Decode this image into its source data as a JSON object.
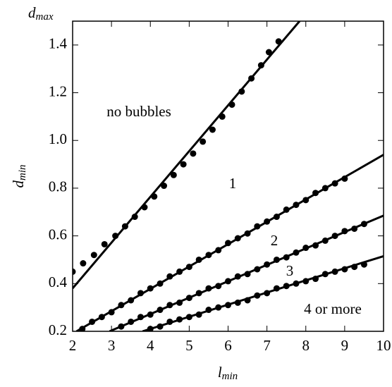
{
  "chart_data": {
    "type": "scatter",
    "xlabel": [
      "l",
      "min"
    ],
    "ylabel": [
      "d",
      "min"
    ],
    "top_label": [
      "d",
      "max"
    ],
    "xlim": [
      2,
      10
    ],
    "ylim": [
      0.2,
      1.5
    ],
    "xticks": [
      2,
      3,
      4,
      5,
      6,
      7,
      8,
      9,
      10
    ],
    "yticks": [
      0.2,
      0.4,
      0.6,
      0.8,
      {
        "value": 1,
        "label": "1.0"
      },
      1.2,
      1.4
    ],
    "color": "#000000",
    "annotations": [
      "no bubbles",
      "1",
      "2",
      "3",
      "4 or more"
    ],
    "lines": [
      {
        "x": [
          2,
          7.84
        ],
        "y": [
          0.38,
          1.5
        ]
      },
      {
        "x": [
          2.1,
          10
        ],
        "y": [
          0.2,
          0.94
        ]
      },
      {
        "x": [
          2.95,
          10
        ],
        "y": [
          0.2,
          0.685
        ]
      },
      {
        "x": [
          3.8,
          10
        ],
        "y": [
          0.2,
          0.515
        ]
      }
    ],
    "series": [
      {
        "x": [
          2,
          2.27,
          2.55,
          2.82,
          3.1,
          3.35,
          3.6,
          3.85,
          4.1,
          4.35,
          4.6,
          4.85,
          5.1,
          5.35,
          5.6,
          5.85,
          6.1,
          6.35,
          6.6,
          6.85,
          7.05,
          7.3
        ],
        "values": [
          0.45,
          0.485,
          0.52,
          0.565,
          0.6,
          0.64,
          0.68,
          0.72,
          0.765,
          0.81,
          0.855,
          0.9,
          0.945,
          0.995,
          1.045,
          1.1,
          1.15,
          1.205,
          1.26,
          1.315,
          1.37,
          1.415
        ]
      },
      {
        "x": [
          2.25,
          2.5,
          2.75,
          3,
          3.25,
          3.5,
          3.75,
          4,
          4.25,
          4.5,
          4.75,
          5,
          5.25,
          5.5,
          5.75,
          6,
          6.25,
          6.5,
          6.75,
          7,
          7.25,
          7.5,
          7.75,
          8,
          8.25,
          8.5,
          8.75,
          9
        ],
        "values": [
          0.21,
          0.24,
          0.26,
          0.28,
          0.31,
          0.33,
          0.36,
          0.38,
          0.4,
          0.43,
          0.45,
          0.47,
          0.5,
          0.52,
          0.54,
          0.57,
          0.59,
          0.61,
          0.64,
          0.66,
          0.68,
          0.71,
          0.73,
          0.75,
          0.78,
          0.8,
          0.82,
          0.84
        ]
      },
      {
        "x": [
          3.25,
          3.5,
          3.75,
          4,
          4.25,
          4.5,
          4.75,
          5,
          5.25,
          5.5,
          5.75,
          6,
          6.25,
          6.5,
          6.75,
          7,
          7.25,
          7.5,
          7.75,
          8,
          8.25,
          8.5,
          8.75,
          9,
          9.25,
          9.5
        ],
        "values": [
          0.22,
          0.24,
          0.26,
          0.27,
          0.29,
          0.31,
          0.32,
          0.34,
          0.36,
          0.38,
          0.39,
          0.41,
          0.43,
          0.44,
          0.46,
          0.48,
          0.5,
          0.51,
          0.53,
          0.55,
          0.56,
          0.58,
          0.6,
          0.62,
          0.63,
          0.65
        ]
      },
      {
        "x": [
          4,
          4.25,
          4.5,
          4.75,
          5,
          5.25,
          5.5,
          5.75,
          6,
          6.25,
          6.5,
          6.75,
          7,
          7.25,
          7.5,
          7.75,
          8,
          8.25,
          8.5,
          8.75,
          9,
          9.25,
          9.5
        ],
        "values": [
          0.21,
          0.22,
          0.24,
          0.25,
          0.26,
          0.27,
          0.29,
          0.3,
          0.31,
          0.32,
          0.33,
          0.35,
          0.36,
          0.38,
          0.39,
          0.4,
          0.41,
          0.42,
          0.44,
          0.45,
          0.46,
          0.47,
          0.48
        ]
      }
    ]
  }
}
